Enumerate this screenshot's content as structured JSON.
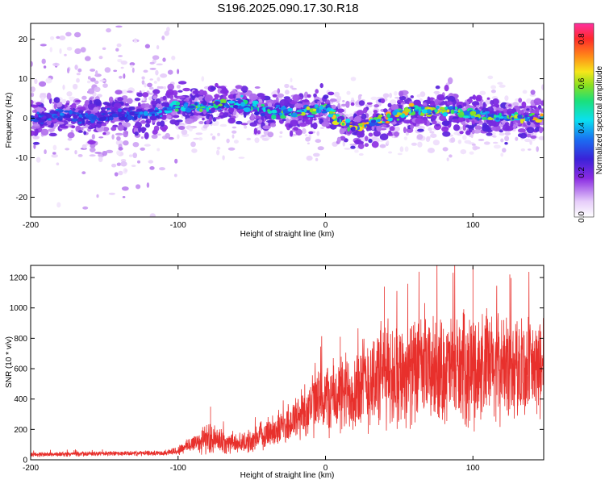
{
  "title": "S196.2025.090.17.30.R18",
  "colors": {
    "snr_line": "#e8302c",
    "spectral_core": "#6a1fd6"
  },
  "chart_data": [
    {
      "type": "heatmap",
      "title": "S196.2025.090.17.30.R18",
      "xlabel": "Height of straight line (km)",
      "ylabel": "Frequency (Hz)",
      "xlim": [
        -200,
        148
      ],
      "ylim": [
        -25,
        24
      ],
      "xticks": [
        -200,
        -100,
        0,
        100
      ],
      "xtick_labels": [
        "-200",
        "-100",
        "0",
        "100"
      ],
      "yticks": [
        20,
        10,
        0,
        -10,
        -20
      ],
      "ytick_labels": [
        "20",
        "10",
        "0",
        "-10",
        "-20"
      ],
      "colorbar": {
        "label": "Normalized spectral amplitude",
        "range": [
          0.0,
          0.87
        ],
        "ticks": [
          0.0,
          0.2,
          0.4,
          0.6,
          0.8
        ],
        "tick_labels": [
          "0.0",
          "0.2",
          "0.4",
          "0.6",
          "0.8"
        ],
        "colormap": "white-purple-blue-cyan-green-yellow-orange-red-magenta"
      },
      "ridge": {
        "description_values_x": [
          -200,
          -180,
          -160,
          -140,
          -120,
          -100,
          -80,
          -60,
          -40,
          -20,
          0,
          10,
          20,
          40,
          60,
          80,
          100,
          120,
          148
        ],
        "frequency_hz": [
          0,
          1,
          0,
          1,
          1,
          3,
          3,
          4,
          2,
          1,
          3,
          -1,
          -2,
          0,
          2,
          2,
          1,
          0,
          0
        ],
        "peak_amplitude": [
          0.3,
          0.35,
          0.3,
          0.3,
          0.35,
          0.5,
          0.55,
          0.55,
          0.5,
          0.6,
          0.6,
          0.72,
          0.7,
          0.68,
          0.65,
          0.62,
          0.6,
          0.55,
          0.72
        ]
      },
      "grid": false
    },
    {
      "type": "line",
      "xlabel": "Height of straight line (km)",
      "ylabel": "SNR (10 * v/v)",
      "xlim": [
        -200,
        148
      ],
      "ylim": [
        0,
        1280
      ],
      "xticks": [
        -200,
        -100,
        0,
        100
      ],
      "xtick_labels": [
        "-200",
        "-100",
        "0",
        "100"
      ],
      "yticks": [
        0,
        200,
        400,
        600,
        800,
        1000,
        1200
      ],
      "ytick_labels": [
        "0",
        "200",
        "400",
        "600",
        "800",
        "1000",
        "1200"
      ],
      "envelope": {
        "x": [
          -200,
          -150,
          -110,
          -100,
          -90,
          -80,
          -70,
          -60,
          -50,
          -40,
          -30,
          -20,
          -10,
          0,
          10,
          20,
          30,
          40,
          60,
          80,
          100,
          120,
          148
        ],
        "mean": [
          35,
          40,
          45,
          60,
          110,
          140,
          120,
          110,
          120,
          180,
          210,
          270,
          360,
          400,
          420,
          470,
          520,
          570,
          580,
          590,
          600,
          610,
          600
        ],
        "spread": [
          15,
          15,
          15,
          30,
          60,
          100,
          80,
          60,
          70,
          100,
          110,
          150,
          200,
          230,
          250,
          280,
          320,
          340,
          330,
          330,
          360,
          330,
          300
        ],
        "peaks": [
          [
            -78,
            350
          ],
          [
            10,
            810
          ],
          [
            40,
            1140
          ],
          [
            100,
            1270
          ],
          [
            125,
            1220
          ]
        ]
      },
      "grid": false
    }
  ]
}
